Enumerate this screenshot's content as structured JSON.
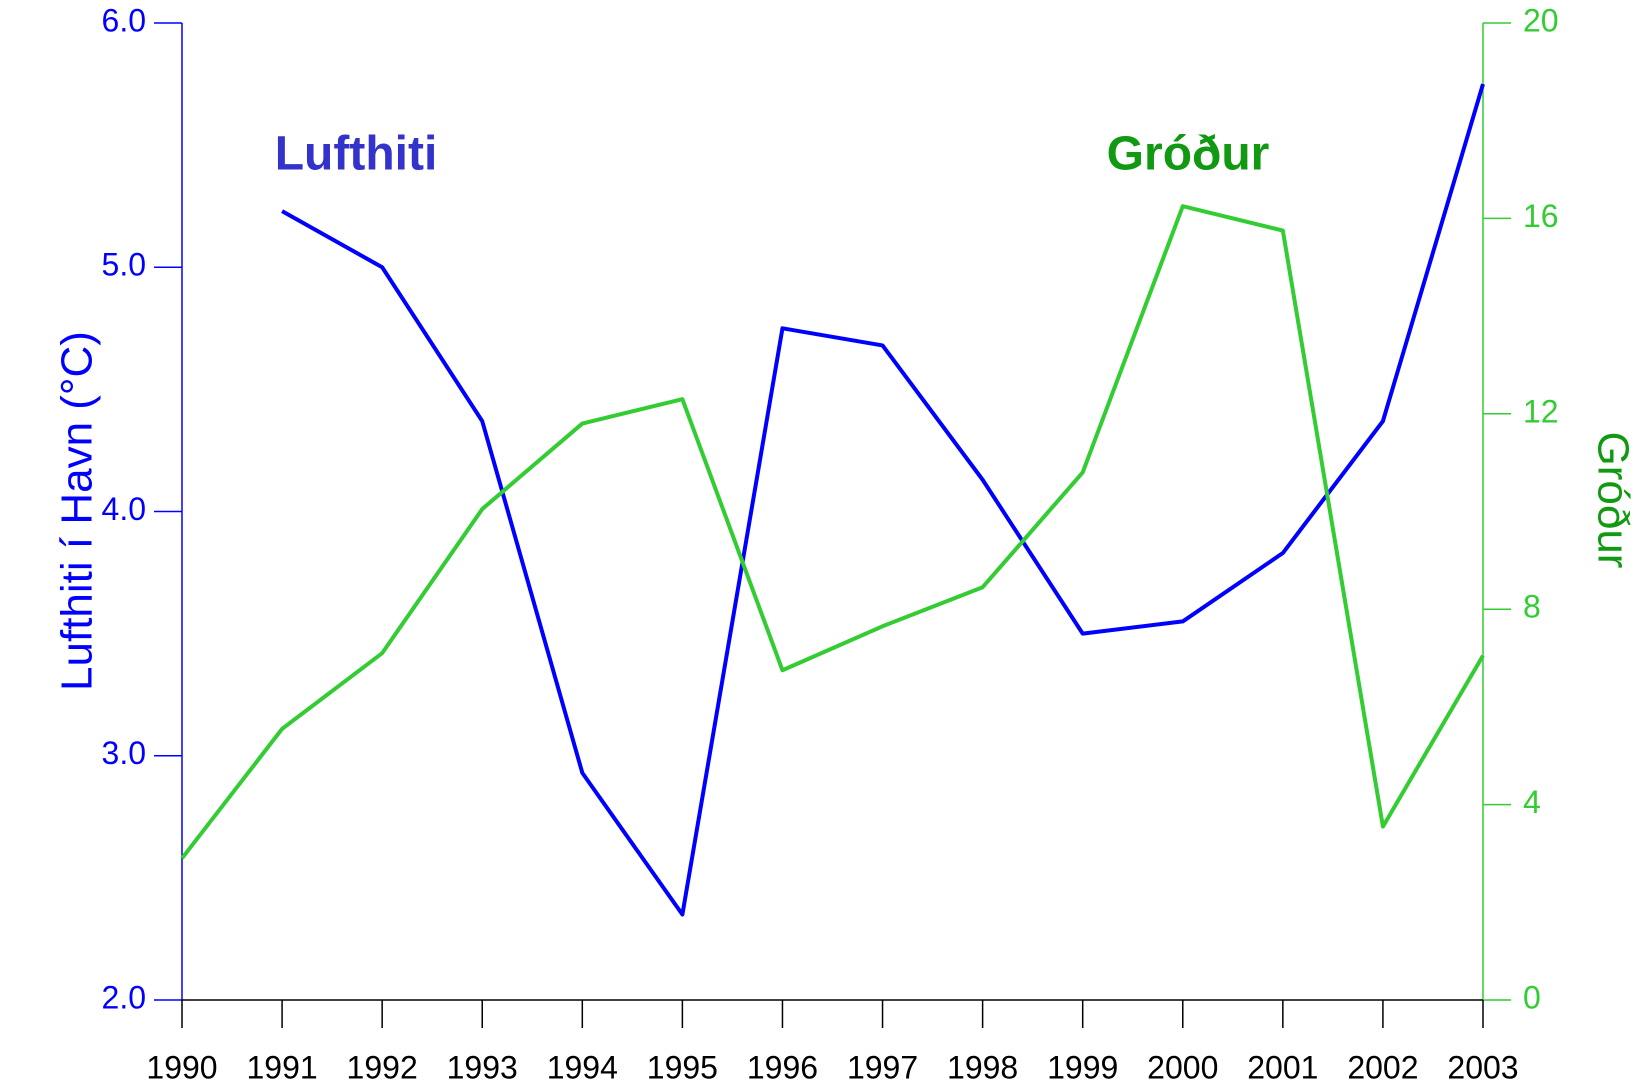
{
  "chart_data": {
    "type": "line",
    "categories": [
      "1990",
      "1991",
      "1992",
      "1993",
      "1994",
      "1995",
      "1996",
      "1997",
      "1998",
      "1999",
      "2000",
      "2001",
      "2002",
      "2003"
    ],
    "series": [
      {
        "name": "Lufthiti",
        "color": "#0000ff",
        "label_color": "#3333cc",
        "axis": "y",
        "values": [
          null,
          5.23,
          5.0,
          4.37,
          2.93,
          2.35,
          4.75,
          4.68,
          4.13,
          3.5,
          3.55,
          3.83,
          4.37,
          5.75
        ]
      },
      {
        "name": "Gróður",
        "color": "#33cc33",
        "label_color": "#119911",
        "axis": "y2",
        "values": [
          2.9,
          5.55,
          7.1,
          10.05,
          11.8,
          12.3,
          6.75,
          7.65,
          8.45,
          10.8,
          16.25,
          15.75,
          3.55,
          7.05
        ]
      }
    ],
    "ylabel": "Lufthiti í Havn (°C)",
    "y2label": "Gróður",
    "ylim": [
      2,
      6
    ],
    "yticks": [
      {
        "value": 2,
        "label": "2.0"
      },
      {
        "value": 3,
        "label": "3.0"
      },
      {
        "value": 4,
        "label": "4.0"
      },
      {
        "value": 5,
        "label": "5.0"
      },
      {
        "value": 6,
        "label": "6.0"
      }
    ],
    "y2lim": [
      0,
      20
    ],
    "y2ticks": [
      0,
      4,
      8,
      12,
      16,
      20
    ]
  }
}
